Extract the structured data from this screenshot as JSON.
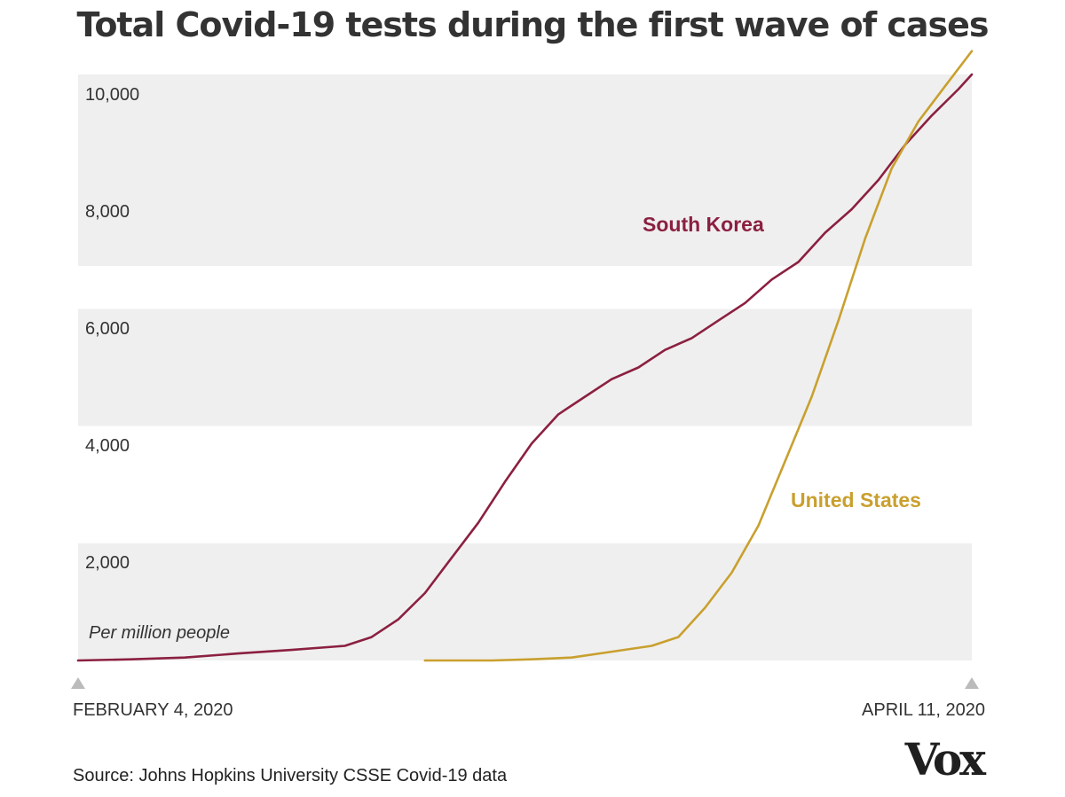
{
  "title": "Total Covid-19 tests during the first wave of cases",
  "source": "Source: Johns Hopkins University CSSE Covid-19 data",
  "logo": "Vox",
  "colors": {
    "south_korea": "#8b2040",
    "united_states": "#c9a02e",
    "band": "#efefef",
    "text": "#333333"
  },
  "chart_data": {
    "type": "line",
    "title": "Total Covid-19 tests during the first wave of cases",
    "unit_label": "Per million people",
    "x_start_label": "FEBRUARY 4, 2020",
    "x_end_label": "APRIL 11, 2020",
    "x_range": [
      "2020-02-04",
      "2020-04-11"
    ],
    "ylim": [
      0,
      10500
    ],
    "yticks": [
      2000,
      4000,
      6000,
      8000,
      10000
    ],
    "ytick_labels": [
      "2,000",
      "4,000",
      "6,000",
      "8,000",
      "10,000"
    ],
    "grid": "alternating horizontal bands",
    "legend": "direct labels on lines",
    "series": [
      {
        "name": "South Korea",
        "points": [
          [
            "2020-02-04",
            0
          ],
          [
            "2020-02-08",
            20
          ],
          [
            "2020-02-12",
            50
          ],
          [
            "2020-02-16",
            120
          ],
          [
            "2020-02-20",
            180
          ],
          [
            "2020-02-24",
            250
          ],
          [
            "2020-02-26",
            400
          ],
          [
            "2020-02-28",
            700
          ],
          [
            "2020-03-01",
            1150
          ],
          [
            "2020-03-03",
            1750
          ],
          [
            "2020-03-05",
            2350
          ],
          [
            "2020-03-07",
            3050
          ],
          [
            "2020-03-09",
            3700
          ],
          [
            "2020-03-11",
            4200
          ],
          [
            "2020-03-13",
            4500
          ],
          [
            "2020-03-15",
            4800
          ],
          [
            "2020-03-17",
            5000
          ],
          [
            "2020-03-19",
            5300
          ],
          [
            "2020-03-21",
            5500
          ],
          [
            "2020-03-23",
            5800
          ],
          [
            "2020-03-25",
            6100
          ],
          [
            "2020-03-27",
            6500
          ],
          [
            "2020-03-29",
            6800
          ],
          [
            "2020-03-31",
            7300
          ],
          [
            "2020-04-02",
            7700
          ],
          [
            "2020-04-04",
            8200
          ],
          [
            "2020-04-06",
            8800
          ],
          [
            "2020-04-08",
            9300
          ],
          [
            "2020-04-10",
            9750
          ],
          [
            "2020-04-11",
            10000
          ]
        ]
      },
      {
        "name": "United States",
        "points": [
          [
            "2020-03-01",
            0
          ],
          [
            "2020-03-06",
            0
          ],
          [
            "2020-03-09",
            20
          ],
          [
            "2020-03-12",
            50
          ],
          [
            "2020-03-15",
            150
          ],
          [
            "2020-03-18",
            250
          ],
          [
            "2020-03-20",
            400
          ],
          [
            "2020-03-22",
            900
          ],
          [
            "2020-03-24",
            1500
          ],
          [
            "2020-03-26",
            2300
          ],
          [
            "2020-03-28",
            3400
          ],
          [
            "2020-03-30",
            4500
          ],
          [
            "2020-04-01",
            5800
          ],
          [
            "2020-04-03",
            7200
          ],
          [
            "2020-04-05",
            8400
          ],
          [
            "2020-04-07",
            9200
          ],
          [
            "2020-04-09",
            9800
          ],
          [
            "2020-04-11",
            10400
          ]
        ]
      }
    ]
  }
}
